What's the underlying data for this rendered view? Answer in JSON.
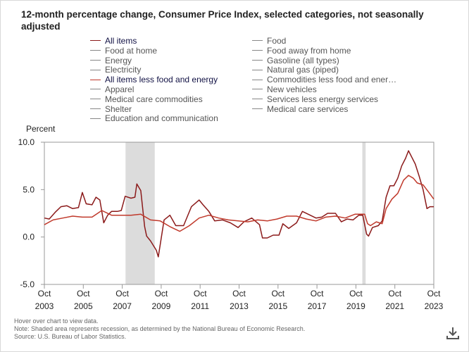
{
  "title": "12-month percentage change, Consumer Price Index, selected categories, not seasonally adjusted",
  "legend": {
    "items": [
      {
        "label": "All items",
        "active": true,
        "color": "#8b1a1a"
      },
      {
        "label": "Food",
        "active": false,
        "color": "#888888"
      },
      {
        "label": "Food at home",
        "active": false,
        "color": "#888888"
      },
      {
        "label": "Food away from home",
        "active": false,
        "color": "#888888"
      },
      {
        "label": "Energy",
        "active": false,
        "color": "#888888"
      },
      {
        "label": "Gasoline (all types)",
        "active": false,
        "color": "#888888"
      },
      {
        "label": "Electricity",
        "active": false,
        "color": "#888888"
      },
      {
        "label": "Natural gas (piped)",
        "active": false,
        "color": "#888888"
      },
      {
        "label": "All items less food and energy",
        "active": true,
        "color": "#c0392b"
      },
      {
        "label": "Commodities less food and ener…",
        "active": false,
        "color": "#888888"
      },
      {
        "label": "Apparel",
        "active": false,
        "color": "#888888"
      },
      {
        "label": "New vehicles",
        "active": false,
        "color": "#888888"
      },
      {
        "label": "Medical care commodities",
        "active": false,
        "color": "#888888"
      },
      {
        "label": "Services less energy services",
        "active": false,
        "color": "#888888"
      },
      {
        "label": "Shelter",
        "active": false,
        "color": "#888888"
      },
      {
        "label": "Medical care services",
        "active": false,
        "color": "#888888"
      },
      {
        "label": "Education and communication",
        "active": false,
        "color": "#888888"
      }
    ]
  },
  "footer": {
    "hover": "Hover over chart to view data.",
    "note": "Note: Shaded area represents recession, as determined by the National Bureau of Economic Research.",
    "source": "Source: U.S. Bureau of Labor Statistics."
  },
  "download_icon": "download-icon",
  "chart_data": {
    "type": "line",
    "ylabel": "Percent",
    "ylim": [
      -5.0,
      10.0
    ],
    "yticks": [
      "10.0",
      "5.0",
      "0.0",
      "-5.0"
    ],
    "ytick_values": [
      10,
      5,
      0,
      -5
    ],
    "xlim": [
      2003.75,
      2023.75
    ],
    "xticks": [
      {
        "month": "Oct",
        "year": "2003",
        "value": 2003.75
      },
      {
        "month": "Oct",
        "year": "2005",
        "value": 2005.75
      },
      {
        "month": "Oct",
        "year": "2007",
        "value": 2007.75
      },
      {
        "month": "Oct",
        "year": "2009",
        "value": 2009.75
      },
      {
        "month": "Oct",
        "year": "2011",
        "value": 2011.75
      },
      {
        "month": "Oct",
        "year": "2013",
        "value": 2013.75
      },
      {
        "month": "Oct",
        "year": "2015",
        "value": 2015.75
      },
      {
        "month": "Oct",
        "year": "2017",
        "value": 2017.75
      },
      {
        "month": "Oct",
        "year": "2019",
        "value": 2019.75
      },
      {
        "month": "Oct",
        "year": "2021",
        "value": 2021.75
      },
      {
        "month": "Oct",
        "year": "2023",
        "value": 2023.75
      }
    ],
    "recessions": [
      [
        2007.92,
        2009.42
      ],
      [
        2020.08,
        2020.25
      ]
    ],
    "series": [
      {
        "name": "All items",
        "color": "#8b1a1a",
        "x": [
          2003.75,
          2004.0,
          2004.3,
          2004.6,
          2004.9,
          2005.2,
          2005.5,
          2005.7,
          2005.9,
          2006.2,
          2006.4,
          2006.6,
          2006.8,
          2007.0,
          2007.2,
          2007.5,
          2007.7,
          2007.9,
          2008.2,
          2008.4,
          2008.5,
          2008.7,
          2008.9,
          2009.0,
          2009.2,
          2009.5,
          2009.6,
          2009.9,
          2010.2,
          2010.5,
          2010.9,
          2011.3,
          2011.7,
          2011.9,
          2012.2,
          2012.5,
          2012.9,
          2013.3,
          2013.7,
          2014.0,
          2014.4,
          2014.8,
          2014.95,
          2015.2,
          2015.5,
          2015.8,
          2016.0,
          2016.3,
          2016.7,
          2017.0,
          2017.3,
          2017.7,
          2018.0,
          2018.3,
          2018.7,
          2019.0,
          2019.3,
          2019.6,
          2019.9,
          2020.1,
          2020.3,
          2020.4,
          2020.6,
          2020.9,
          2021.1,
          2021.3,
          2021.5,
          2021.7,
          2021.9,
          2022.1,
          2022.3,
          2022.45,
          2022.6,
          2022.8,
          2023.0,
          2023.2,
          2023.4,
          2023.55,
          2023.75
        ],
        "y": [
          2.0,
          1.9,
          2.6,
          3.2,
          3.3,
          3.0,
          3.1,
          4.7,
          3.5,
          3.4,
          4.2,
          3.9,
          1.5,
          2.3,
          2.7,
          2.7,
          2.8,
          4.3,
          4.1,
          4.2,
          5.6,
          4.9,
          1.1,
          0.1,
          -0.4,
          -1.4,
          -2.1,
          1.8,
          2.3,
          1.2,
          1.2,
          3.2,
          3.9,
          3.4,
          2.7,
          1.7,
          1.8,
          1.5,
          1.0,
          1.6,
          2.0,
          1.3,
          -0.1,
          -0.1,
          0.2,
          0.2,
          1.4,
          0.9,
          1.5,
          2.7,
          2.4,
          2.0,
          2.1,
          2.5,
          2.5,
          1.6,
          1.9,
          1.8,
          2.3,
          2.3,
          0.3,
          0.1,
          1.0,
          1.2,
          1.7,
          4.2,
          5.4,
          5.4,
          6.2,
          7.5,
          8.3,
          9.1,
          8.5,
          7.7,
          6.4,
          5.0,
          3.0,
          3.2,
          3.2
        ]
      },
      {
        "name": "All items less food and energy",
        "color": "#c0392b",
        "x": [
          2003.75,
          2004.2,
          2004.7,
          2005.2,
          2005.7,
          2006.2,
          2006.7,
          2007.2,
          2007.7,
          2008.2,
          2008.7,
          2009.2,
          2009.7,
          2010.2,
          2010.7,
          2011.2,
          2011.7,
          2012.2,
          2012.7,
          2013.2,
          2013.7,
          2014.2,
          2014.7,
          2015.2,
          2015.7,
          2016.2,
          2016.7,
          2017.2,
          2017.7,
          2018.2,
          2018.7,
          2019.2,
          2019.7,
          2020.2,
          2020.35,
          2020.5,
          2020.8,
          2021.1,
          2021.3,
          2021.6,
          2021.9,
          2022.2,
          2022.45,
          2022.7,
          2022.9,
          2023.2,
          2023.5,
          2023.75
        ],
        "y": [
          1.3,
          1.8,
          2.0,
          2.2,
          2.1,
          2.1,
          2.8,
          2.3,
          2.3,
          2.3,
          2.4,
          1.8,
          1.7,
          1.1,
          0.6,
          1.2,
          2.0,
          2.3,
          2.0,
          1.8,
          1.7,
          1.6,
          1.8,
          1.7,
          1.9,
          2.2,
          2.2,
          1.9,
          1.7,
          2.1,
          2.2,
          2.0,
          2.4,
          2.4,
          1.4,
          1.2,
          1.6,
          1.4,
          3.0,
          4.0,
          4.6,
          6.0,
          6.5,
          6.2,
          5.7,
          5.5,
          4.7,
          4.0
        ]
      }
    ]
  }
}
